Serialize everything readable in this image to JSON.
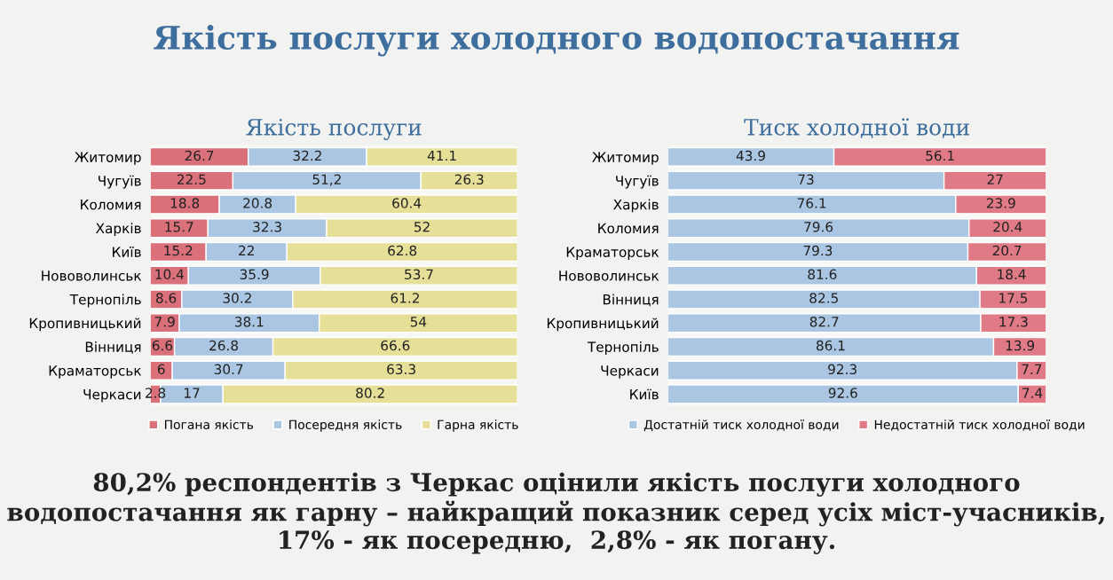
{
  "chart_data": [
    {
      "type": "bar",
      "orientation": "horizontal",
      "stacked": true,
      "title": "Якість послуги",
      "tick_labels": "y",
      "xlim": [
        0,
        100
      ],
      "legend": "bottom",
      "grid": false,
      "annotations": [
        "Якість послуги холодного водопостачання",
        "80,2% респондентів з Черкас оцінили якість послуги холодного водопостачання як гарну – найкращий показник серед усіх міст-учасників, 17% - як посередню,  2,8% - як погану."
      ],
      "categories": [
        "Житомир",
        "Чугуїв",
        "Коломия",
        "Харків",
        "Київ",
        "Нововолинськ",
        "Тернопіль",
        "Кропивницький",
        "Вінниця",
        "Краматорськ",
        "Черкаси"
      ],
      "series": [
        {
          "name": "Погана якість",
          "color": "#d9707a",
          "values": [
            26.7,
            22.5,
            18.8,
            15.7,
            15.2,
            10.4,
            8.6,
            7.9,
            6.6,
            6,
            2.8
          ],
          "value_labels": [
            "26.7",
            "22.5",
            "18.8",
            "15.7",
            "15.2",
            "10.4",
            "8.6",
            "7.9",
            "6.6",
            "6",
            "2.8"
          ]
        },
        {
          "name": "Посередня якість",
          "color": "#abc6e2",
          "values": [
            32.2,
            51.2,
            20.8,
            32.3,
            22,
            35.9,
            30.2,
            38.1,
            26.8,
            30.7,
            17
          ],
          "value_labels": [
            "32.2",
            "51,2",
            "20.8",
            "32.3",
            "22",
            "35.9",
            "30.2",
            "38.1",
            "26.8",
            "30.7",
            "17"
          ]
        },
        {
          "name": "Гарна якість",
          "color": "#e6df98",
          "values": [
            41.1,
            26.3,
            60.4,
            52,
            62.8,
            53.7,
            61.2,
            54,
            66.6,
            63.3,
            80.2
          ],
          "value_labels": [
            "41.1",
            "26.3",
            "60.4",
            "52",
            "62.8",
            "53.7",
            "61.2",
            "54",
            "66.6",
            "63.3",
            "80.2"
          ]
        }
      ]
    },
    {
      "type": "bar",
      "orientation": "horizontal",
      "stacked": true,
      "title": "Тиск холодної води",
      "tick_labels": "y",
      "xlim": [
        0,
        100
      ],
      "legend": "bottom",
      "grid": false,
      "categories": [
        "Житомир",
        "Чугуїв",
        "Харків",
        "Коломия",
        "Краматорськ",
        "Нововолинськ",
        "Вінниця",
        "Кропивницький",
        "Тернопіль",
        "Черкаси",
        "Київ"
      ],
      "series": [
        {
          "name": "Достатній тиск холодної води",
          "color": "#abc6e2",
          "values": [
            43.9,
            73,
            76.1,
            79.6,
            79.3,
            81.6,
            82.5,
            82.7,
            86.1,
            92.3,
            92.6
          ],
          "value_labels": [
            "43.9",
            "73",
            "76.1",
            "79.6",
            "79.3",
            "81.6",
            "82.5",
            "82.7",
            "86.1",
            "92.3",
            "92.6"
          ]
        },
        {
          "name": "Недостатній тиск холодної води",
          "color": "#e07a86",
          "values": [
            56.1,
            27,
            23.9,
            20.4,
            20.7,
            18.4,
            17.5,
            17.3,
            13.9,
            7.7,
            7.4
          ],
          "value_labels": [
            "56.1",
            "27",
            "23.9",
            "20.4",
            "20.7",
            "18.4",
            "17.5",
            "17.3",
            "13.9",
            "7.7",
            "7.4"
          ]
        }
      ]
    }
  ]
}
